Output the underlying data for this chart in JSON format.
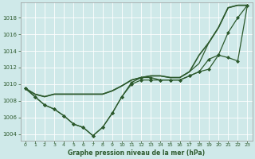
{
  "title": "Graphe pression niveau de la mer (hPa)",
  "background_color": "#cfe9e9",
  "grid_color": "#b0d0d0",
  "line_color": "#2d5a2d",
  "ylim": [
    1003.2,
    1019.8
  ],
  "xlim": [
    -0.5,
    23.5
  ],
  "yticks": [
    1004,
    1006,
    1008,
    1010,
    1012,
    1014,
    1016,
    1018
  ],
  "xticks": [
    0,
    1,
    2,
    3,
    4,
    5,
    6,
    7,
    8,
    9,
    10,
    11,
    12,
    13,
    14,
    15,
    16,
    17,
    18,
    19,
    20,
    21,
    22,
    23
  ],
  "series": [
    {
      "x": [
        0,
        1,
        2,
        3,
        4,
        5,
        6,
        7,
        8,
        9,
        10,
        11,
        12,
        13,
        14,
        15,
        16,
        17,
        18,
        19,
        20,
        21,
        22,
        23
      ],
      "y": [
        1009.5,
        1008.8,
        1008.5,
        1008.8,
        1008.8,
        1008.8,
        1008.8,
        1008.8,
        1008.8,
        1009.2,
        1009.8,
        1010.5,
        1010.8,
        1011.0,
        1011.0,
        1010.8,
        1010.8,
        1011.5,
        1013.5,
        1015.0,
        1016.8,
        1019.2,
        1019.5,
        1019.5
      ],
      "marker": null,
      "linewidth": 1.2
    },
    {
      "x": [
        0,
        1,
        2,
        3,
        4,
        5,
        6,
        7,
        8,
        9,
        10,
        11,
        12,
        13,
        14,
        15,
        16,
        17,
        18,
        19,
        20,
        21,
        22,
        23
      ],
      "y": [
        1009.5,
        1008.5,
        1007.5,
        1007.0,
        1006.2,
        1005.2,
        1004.8,
        1003.8,
        1004.8,
        1006.5,
        1008.5,
        1010.2,
        1010.8,
        1010.8,
        1010.5,
        1010.5,
        1010.5,
        1011.0,
        1011.5,
        1013.0,
        1013.5,
        1016.2,
        1018.0,
        1019.5
      ],
      "marker": "D",
      "markersize": 2.0,
      "linewidth": 0.9
    },
    {
      "x": [
        0,
        1,
        2,
        3,
        4,
        5,
        6,
        7,
        8,
        9,
        10,
        11,
        12,
        13,
        14,
        15,
        16,
        17,
        18,
        19,
        20,
        21,
        22,
        23
      ],
      "y": [
        1009.5,
        1008.8,
        1008.5,
        1008.8,
        1008.8,
        1008.8,
        1008.8,
        1008.8,
        1008.8,
        1009.2,
        1009.8,
        1010.5,
        1010.8,
        1011.0,
        1011.0,
        1010.8,
        1010.8,
        1011.5,
        1012.5,
        1015.0,
        1016.8,
        1019.2,
        1019.5,
        1019.5
      ],
      "marker": null,
      "linewidth": 0.9
    },
    {
      "x": [
        0,
        1,
        2,
        3,
        4,
        5,
        6,
        7,
        8,
        9,
        10,
        11,
        12,
        13,
        14,
        15,
        16,
        17,
        18,
        19,
        20,
        21,
        22,
        23
      ],
      "y": [
        1009.5,
        1008.5,
        1007.5,
        1007.0,
        1006.2,
        1005.2,
        1004.8,
        1003.8,
        1004.8,
        1006.5,
        1008.5,
        1010.0,
        1010.5,
        1010.5,
        1010.5,
        1010.5,
        1010.5,
        1011.0,
        1011.5,
        1011.8,
        1013.5,
        1013.2,
        1012.8,
        1019.5
      ],
      "marker": "D",
      "markersize": 2.0,
      "linewidth": 0.9
    }
  ]
}
